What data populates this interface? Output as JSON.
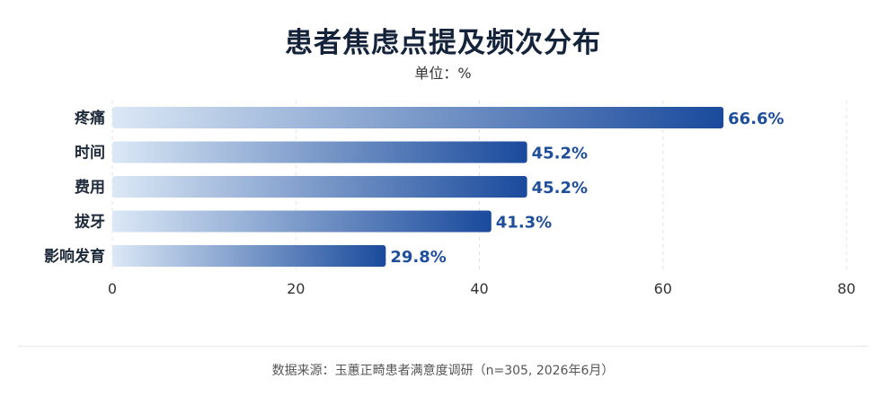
{
  "title": "患者焦虑点提及频次分布",
  "subtitle": "单位：%",
  "source": "数据来源：玉蕙正畸患者满意度调研（n=305, 2026年6月）",
  "chart_data": {
    "type": "bar",
    "orientation": "horizontal",
    "categories": [
      "疼痛",
      "时间",
      "费用",
      "拔牙",
      "影响发育"
    ],
    "values": [
      66.6,
      45.2,
      45.2,
      41.3,
      29.8
    ],
    "value_labels": [
      "66.6%",
      "45.2%",
      "45.2%",
      "41.3%",
      "29.8%"
    ],
    "xlim": [
      0,
      80
    ],
    "xticks": [
      0,
      20,
      40,
      60,
      80
    ],
    "xtick_labels": [
      "0",
      "20",
      "40",
      "60",
      "80"
    ],
    "grid": "vertical-dashed",
    "colors": {
      "bar_start": "#dbe8f6",
      "bar_end": "#1a4a9c",
      "value_label": "#1f4e9b",
      "category_label": "#1e2a3a",
      "grid": "#e3e3e3"
    }
  }
}
